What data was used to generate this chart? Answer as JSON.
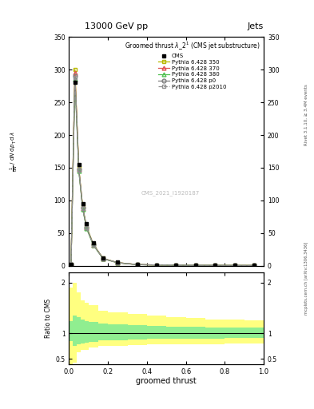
{
  "title_top": "13000 GeV pp",
  "title_right": "Jets",
  "plot_title": "Groomed thrust $\\lambda\\_2^1$ (CMS jet substructure)",
  "xlabel": "groomed thrust",
  "ylabel_main_lines": [
    "mathrm d$^2$N",
    "mathrm d $p_\\mathrm{T}$ mathrm d $\\lambda$"
  ],
  "ylabel_ratio": "Ratio to CMS",
  "watermark": "CMS_2021_I1920187",
  "right_label": "mcplots.cern.ch [arXiv:1306.3436]",
  "rivet_label": "Rivet 3.1.10, ≥ 3.4M events",
  "xlim": [
    0.0,
    1.0
  ],
  "ylim_main_max": 350,
  "ylim_ratio_lo": 0.4,
  "ylim_ratio_hi": 2.2,
  "x_bins": [
    0.0,
    0.02,
    0.04,
    0.06,
    0.08,
    0.1,
    0.15,
    0.2,
    0.3,
    0.4,
    0.5,
    0.6,
    0.7,
    0.8,
    0.9,
    1.0
  ],
  "cms_data": [
    2.0,
    280.0,
    155.0,
    95.0,
    65.0,
    35.0,
    12.0,
    5.5,
    2.2,
    1.5,
    1.2,
    1.0,
    0.9,
    0.8,
    0.75,
    0.7
  ],
  "pythia_350": [
    2.0,
    300.0,
    150.0,
    90.0,
    60.0,
    33.0,
    11.5,
    5.0,
    2.1,
    1.4,
    1.1,
    0.95,
    0.88,
    0.78,
    0.72,
    0.68
  ],
  "pythia_370": [
    2.0,
    295.0,
    148.0,
    88.0,
    58.0,
    32.0,
    11.2,
    4.9,
    2.1,
    1.4,
    1.1,
    0.94,
    0.87,
    0.77,
    0.71,
    0.67
  ],
  "pythia_380": [
    2.0,
    285.0,
    145.0,
    87.0,
    57.0,
    31.5,
    11.0,
    4.8,
    2.0,
    1.35,
    1.05,
    0.92,
    0.85,
    0.76,
    0.7,
    0.66
  ],
  "pythia_p0": [
    2.0,
    290.0,
    148.0,
    89.0,
    59.0,
    32.5,
    11.3,
    4.95,
    2.1,
    1.42,
    1.08,
    0.93,
    0.86,
    0.77,
    0.71,
    0.67
  ],
  "pythia_p2010": [
    2.0,
    288.0,
    146.0,
    88.0,
    58.5,
    32.0,
    11.1,
    4.85,
    2.05,
    1.38,
    1.06,
    0.91,
    0.84,
    0.75,
    0.69,
    0.65
  ],
  "ratio_yellow_lo": [
    0.4,
    0.42,
    0.63,
    0.67,
    0.68,
    0.72,
    0.75,
    0.76,
    0.77,
    0.78,
    0.78,
    0.79,
    0.79,
    0.8,
    0.8,
    0.8
  ],
  "ratio_yellow_hi": [
    1.9,
    2.0,
    1.8,
    1.65,
    1.6,
    1.55,
    1.45,
    1.42,
    1.38,
    1.35,
    1.32,
    1.3,
    1.28,
    1.27,
    1.26,
    1.25
  ],
  "ratio_green_lo": [
    0.85,
    0.75,
    0.78,
    0.8,
    0.82,
    0.84,
    0.86,
    0.87,
    0.88,
    0.89,
    0.89,
    0.9,
    0.9,
    0.91,
    0.91,
    0.91
  ],
  "ratio_green_hi": [
    1.25,
    1.35,
    1.32,
    1.28,
    1.25,
    1.22,
    1.2,
    1.18,
    1.16,
    1.15,
    1.14,
    1.13,
    1.12,
    1.12,
    1.11,
    1.11
  ],
  "color_350": "#b8b800",
  "color_370": "#e05050",
  "color_380": "#50c050",
  "color_p0": "#808080",
  "color_p2010": "#909090",
  "color_yellow": "#ffff80",
  "color_green": "#90ee90",
  "yticks_main": [
    0,
    50,
    100,
    150,
    200,
    250,
    300,
    350
  ],
  "yticks_ratio": [
    0.5,
    1.0,
    2.0
  ]
}
